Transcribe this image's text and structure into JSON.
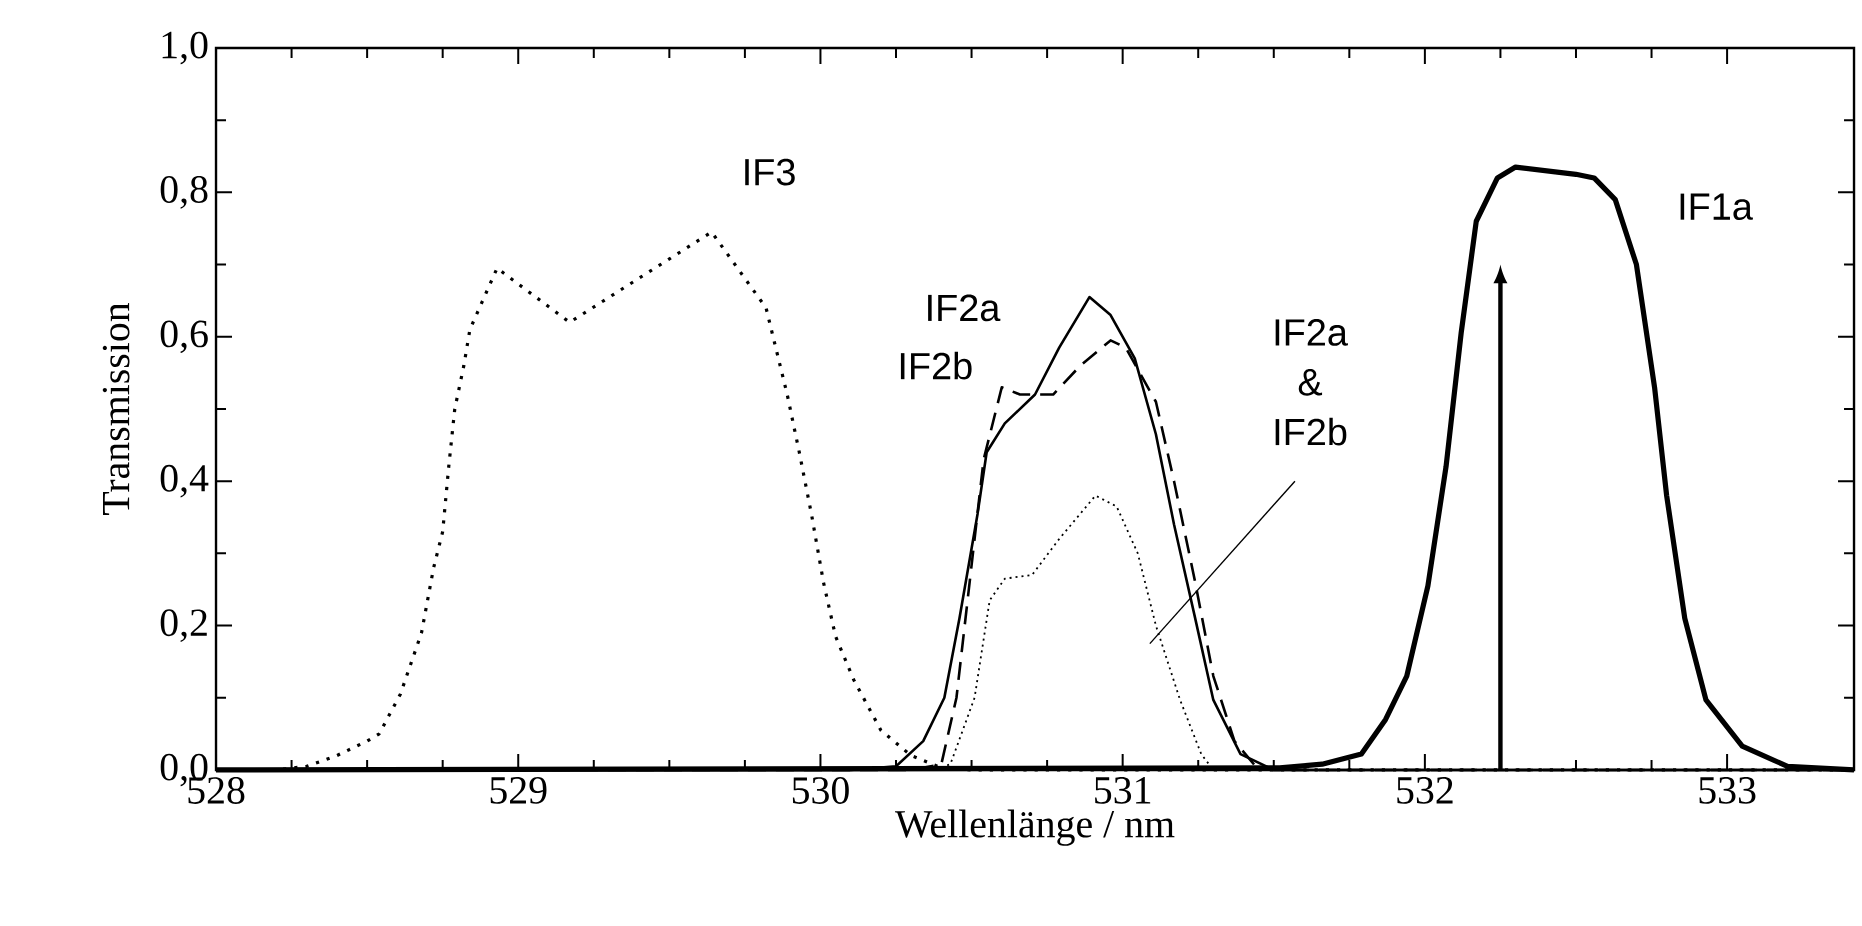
{
  "chart_data": {
    "type": "line",
    "xlabel": "Wellenlänge / nm",
    "ylabel": "Transmission",
    "xlim": [
      528,
      533.42
    ],
    "ylim": [
      0,
      1
    ],
    "xticks": [
      528,
      529,
      530,
      531,
      532,
      533
    ],
    "yticks": [
      {
        "value": 0,
        "label": "0,0"
      },
      {
        "value": 0.2,
        "label": "0,2"
      },
      {
        "value": 0.4,
        "label": "0,4"
      },
      {
        "value": 0.6,
        "label": "0,6"
      },
      {
        "value": 0.8,
        "label": "0,8"
      },
      {
        "value": 1,
        "label": "1,0"
      }
    ],
    "ref_lines": [
      {
        "axis": "x",
        "value": 532.25,
        "color": "#000000"
      }
    ],
    "series": [
      {
        "name": "IF3",
        "color": "#000000",
        "line_style": "dotted",
        "x": [
          528,
          528.2,
          528.3,
          528.4,
          528.5,
          528.54,
          528.61,
          528.68,
          528.72,
          528.75,
          528.77,
          528.79,
          528.82,
          528.84,
          528.93,
          529.17,
          529.64,
          529.82,
          529.89,
          529.93,
          529.97,
          530.01,
          530.05,
          530.11,
          530.2,
          530.3,
          530.4,
          530.5,
          533.42
        ],
        "values": [
          0,
          0,
          0.005,
          0.02,
          0.04,
          0.05,
          0.105,
          0.19,
          0.28,
          0.33,
          0.42,
          0.5,
          0.56,
          0.61,
          0.695,
          0.62,
          0.745,
          0.64,
          0.52,
          0.44,
          0.355,
          0.26,
          0.185,
          0.125,
          0.055,
          0.02,
          0.003,
          0,
          0
        ]
      },
      {
        "name": "IF2a",
        "color": "#000000",
        "line_style": "solid",
        "x": [
          528,
          530.1,
          530.25,
          530.34,
          530.41,
          530.46,
          530.52,
          530.55,
          530.61,
          530.71,
          530.79,
          530.89,
          530.96,
          531.04,
          531.11,
          531.17,
          531.24,
          531.3,
          531.39,
          531.5,
          533.42
        ],
        "values": [
          0,
          0,
          0.005,
          0.04,
          0.1,
          0.21,
          0.355,
          0.44,
          0.48,
          0.52,
          0.585,
          0.655,
          0.63,
          0.57,
          0.465,
          0.34,
          0.21,
          0.097,
          0.022,
          0,
          0
        ]
      },
      {
        "name": "IF2b",
        "color": "#000000",
        "line_style": "dashed",
        "x": [
          528,
          530.3,
          530.4,
          530.45,
          530.51,
          530.54,
          530.6,
          530.66,
          530.77,
          530.86,
          530.96,
          531.01,
          531.11,
          531.17,
          531.24,
          531.3,
          531.37,
          531.44,
          531.5,
          533.42
        ],
        "values": [
          0,
          0,
          0.008,
          0.1,
          0.32,
          0.43,
          0.53,
          0.52,
          0.52,
          0.56,
          0.595,
          0.585,
          0.51,
          0.4,
          0.26,
          0.13,
          0.04,
          0.005,
          0,
          0
        ]
      },
      {
        "name": "IF2a & IF2b",
        "color": "#000000",
        "line_style": "dotted",
        "x": [
          528,
          530.38,
          530.43,
          530.51,
          530.56,
          530.61,
          530.7,
          530.79,
          530.91,
          530.98,
          531.05,
          531.11,
          531.19,
          531.26,
          531.3,
          533.42
        ],
        "values": [
          0,
          0,
          0.008,
          0.1,
          0.235,
          0.265,
          0.27,
          0.32,
          0.38,
          0.365,
          0.3,
          0.2,
          0.097,
          0.022,
          0,
          0
        ]
      },
      {
        "name": "IF1a",
        "color": "#000000",
        "line_style": "solid",
        "x": [
          528,
          531.52,
          531.66,
          531.79,
          531.87,
          531.94,
          532.01,
          532.07,
          532.12,
          532.17,
          532.24,
          532.3,
          532.5,
          532.56,
          532.63,
          532.7,
          532.76,
          532.8,
          532.86,
          532.93,
          533.05,
          533.2,
          533.42
        ],
        "values": [
          0,
          0.003,
          0.008,
          0.022,
          0.07,
          0.13,
          0.255,
          0.42,
          0.605,
          0.76,
          0.82,
          0.835,
          0.825,
          0.82,
          0.79,
          0.7,
          0.53,
          0.38,
          0.21,
          0.097,
          0.033,
          0.005,
          0
        ]
      }
    ]
  }
}
